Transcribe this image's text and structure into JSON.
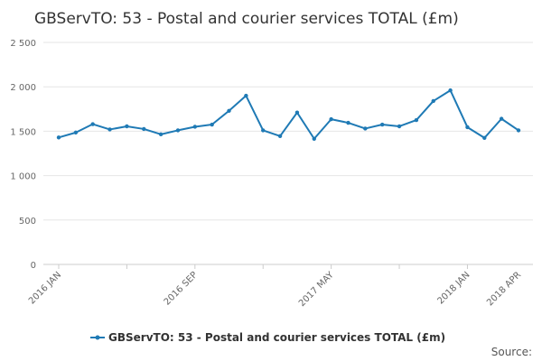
{
  "chart_data": {
    "type": "line",
    "title": "GBServTO: 53 - Postal and courier services TOTAL (£m)",
    "xlabel": "",
    "ylabel": "",
    "ylim": [
      0,
      2500
    ],
    "yticks": [
      0,
      500,
      1000,
      1500,
      2000,
      2500
    ],
    "ytick_labels": [
      "0",
      "500",
      "1 000",
      "1 500",
      "2 000",
      "2 500"
    ],
    "x": [
      "2016 JAN",
      "2016 FEB",
      "2016 MAR",
      "2016 APR",
      "2016 MAY",
      "2016 JUN",
      "2016 JUL",
      "2016 AUG",
      "2016 SEP",
      "2016 OCT",
      "2016 NOV",
      "2016 DEC",
      "2017 JAN",
      "2017 FEB",
      "2017 MAR",
      "2017 APR",
      "2017 MAY",
      "2017 JUN",
      "2017 JUL",
      "2017 AUG",
      "2017 SEP",
      "2017 OCT",
      "2017 NOV",
      "2017 DEC",
      "2018 JAN",
      "2018 FEB",
      "2018 MAR",
      "2018 APR"
    ],
    "xtick_labels": [
      {
        "index": 0,
        "label": "2016 JAN"
      },
      {
        "index": 8,
        "label": "2016 SEP"
      },
      {
        "index": 16,
        "label": "2017 MAY"
      },
      {
        "index": 24,
        "label": "2018 JAN"
      },
      {
        "index": 27,
        "label": "2018 APR"
      }
    ],
    "series": [
      {
        "name": "GBServTO: 53 - Postal and courier services TOTAL (£m)",
        "color": "#1f7ab5",
        "values": [
          1430,
          1485,
          1580,
          1520,
          1555,
          1525,
          1465,
          1510,
          1550,
          1575,
          1730,
          1900,
          1510,
          1445,
          1710,
          1415,
          1635,
          1595,
          1530,
          1575,
          1555,
          1625,
          1840,
          1960,
          1545,
          1425,
          1640,
          1510
        ]
      }
    ],
    "grid": true,
    "legend_position": "bottom",
    "source_label": "Source:"
  }
}
